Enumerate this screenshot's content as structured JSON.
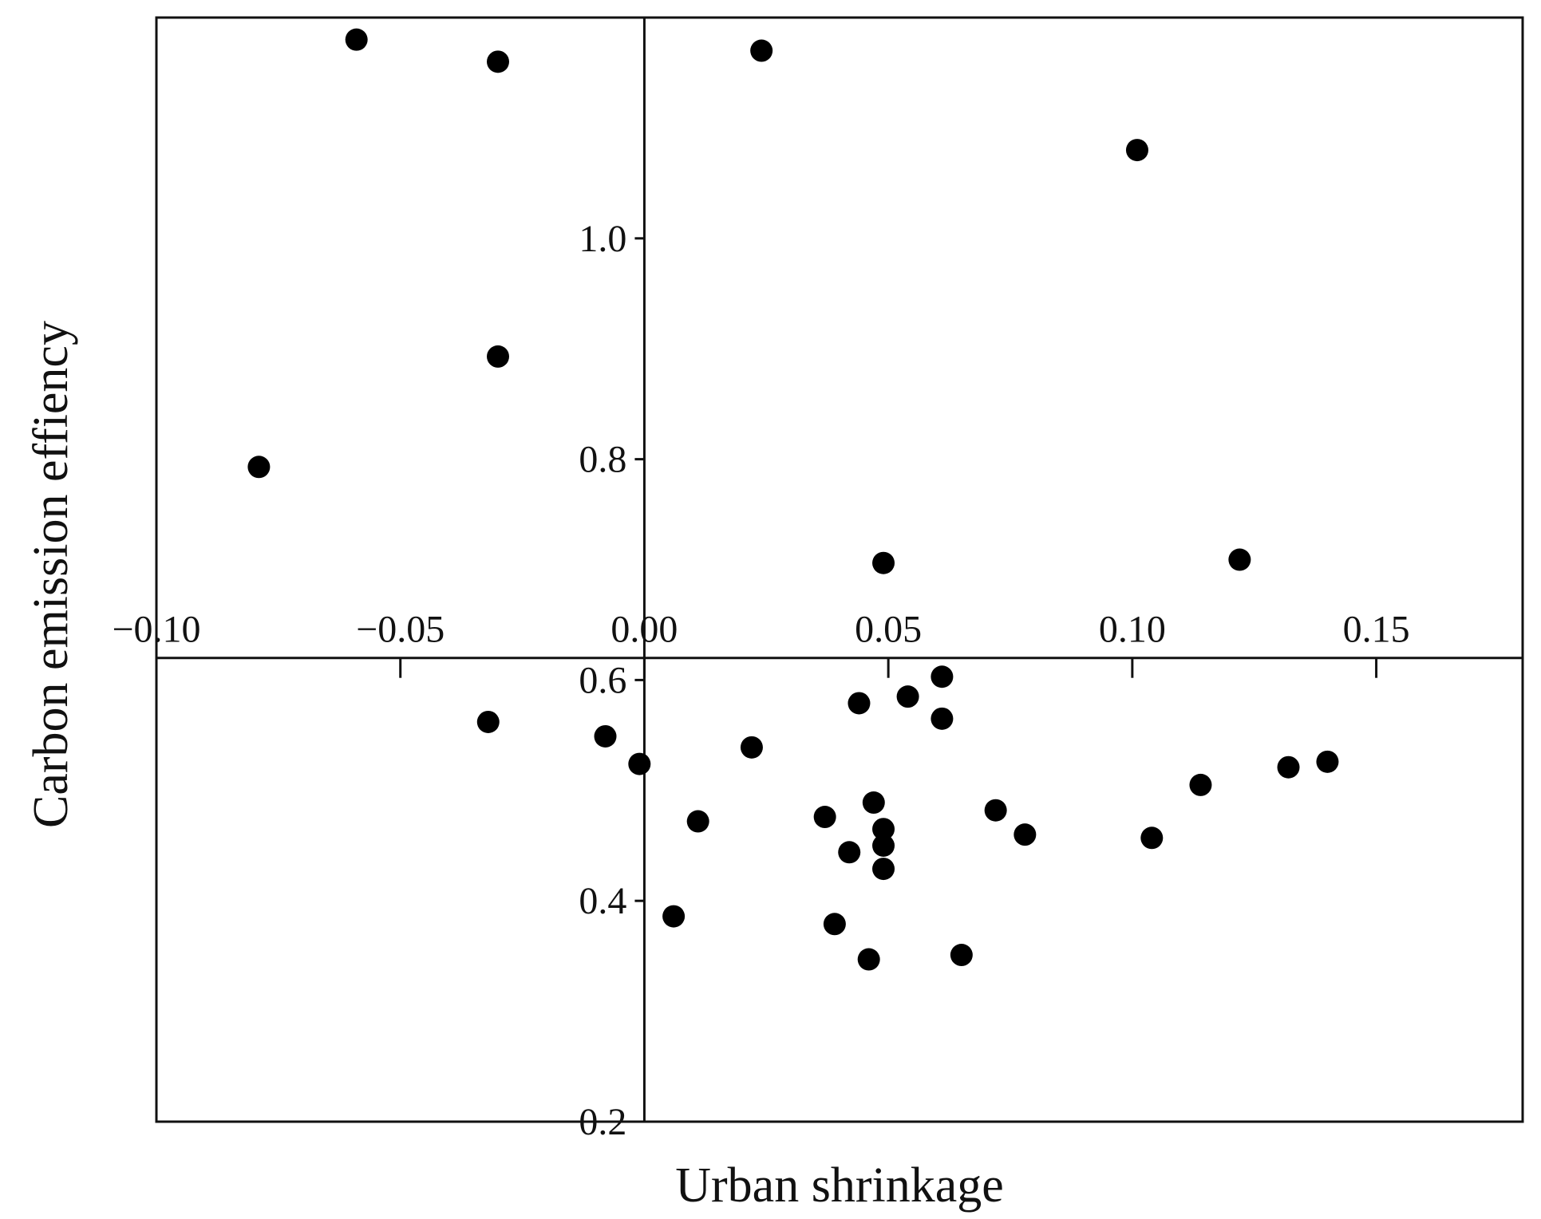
{
  "chart_data": {
    "type": "scatter",
    "title": "",
    "xlabel": "Urban shrinkage",
    "ylabel": "Carbon emission effiency",
    "xlim": [
      -0.1,
      0.18
    ],
    "ylim": [
      0.2,
      1.2
    ],
    "x_ticks": [
      -0.1,
      -0.05,
      0.0,
      0.05,
      0.1,
      0.15
    ],
    "x_tick_labels": [
      "−0.10",
      "−0.05",
      "0.00",
      "0.05",
      "0.10",
      "0.15"
    ],
    "y_ticks": [
      0.2,
      0.4,
      0.6,
      0.8,
      1.0
    ],
    "y_tick_labels": [
      "0.2",
      "0.4",
      "0.6",
      "0.8",
      "1.0"
    ],
    "axes_cross_at": {
      "x": 0.0,
      "y": 0.62
    },
    "grid": false,
    "marker_color": "#000000",
    "points": [
      {
        "x": -0.059,
        "y": 1.18
      },
      {
        "x": -0.03,
        "y": 1.16
      },
      {
        "x": 0.024,
        "y": 1.17
      },
      {
        "x": 0.101,
        "y": 1.08
      },
      {
        "x": -0.03,
        "y": 0.893
      },
      {
        "x": -0.079,
        "y": 0.793
      },
      {
        "x": 0.049,
        "y": 0.706
      },
      {
        "x": 0.122,
        "y": 0.709
      },
      {
        "x": -0.032,
        "y": 0.562
      },
      {
        "x": -0.008,
        "y": 0.549
      },
      {
        "x": -0.001,
        "y": 0.524
      },
      {
        "x": 0.022,
        "y": 0.539
      },
      {
        "x": 0.044,
        "y": 0.579
      },
      {
        "x": 0.054,
        "y": 0.585
      },
      {
        "x": 0.061,
        "y": 0.603
      },
      {
        "x": 0.061,
        "y": 0.565
      },
      {
        "x": 0.011,
        "y": 0.472
      },
      {
        "x": 0.037,
        "y": 0.476
      },
      {
        "x": 0.047,
        "y": 0.489
      },
      {
        "x": 0.049,
        "y": 0.465
      },
      {
        "x": 0.049,
        "y": 0.45
      },
      {
        "x": 0.042,
        "y": 0.444
      },
      {
        "x": 0.049,
        "y": 0.429
      },
      {
        "x": 0.072,
        "y": 0.482
      },
      {
        "x": 0.078,
        "y": 0.46
      },
      {
        "x": 0.104,
        "y": 0.457
      },
      {
        "x": 0.114,
        "y": 0.505
      },
      {
        "x": 0.132,
        "y": 0.521
      },
      {
        "x": 0.14,
        "y": 0.526
      },
      {
        "x": 0.006,
        "y": 0.386
      },
      {
        "x": 0.039,
        "y": 0.379
      },
      {
        "x": 0.046,
        "y": 0.347
      },
      {
        "x": 0.065,
        "y": 0.351
      }
    ]
  }
}
